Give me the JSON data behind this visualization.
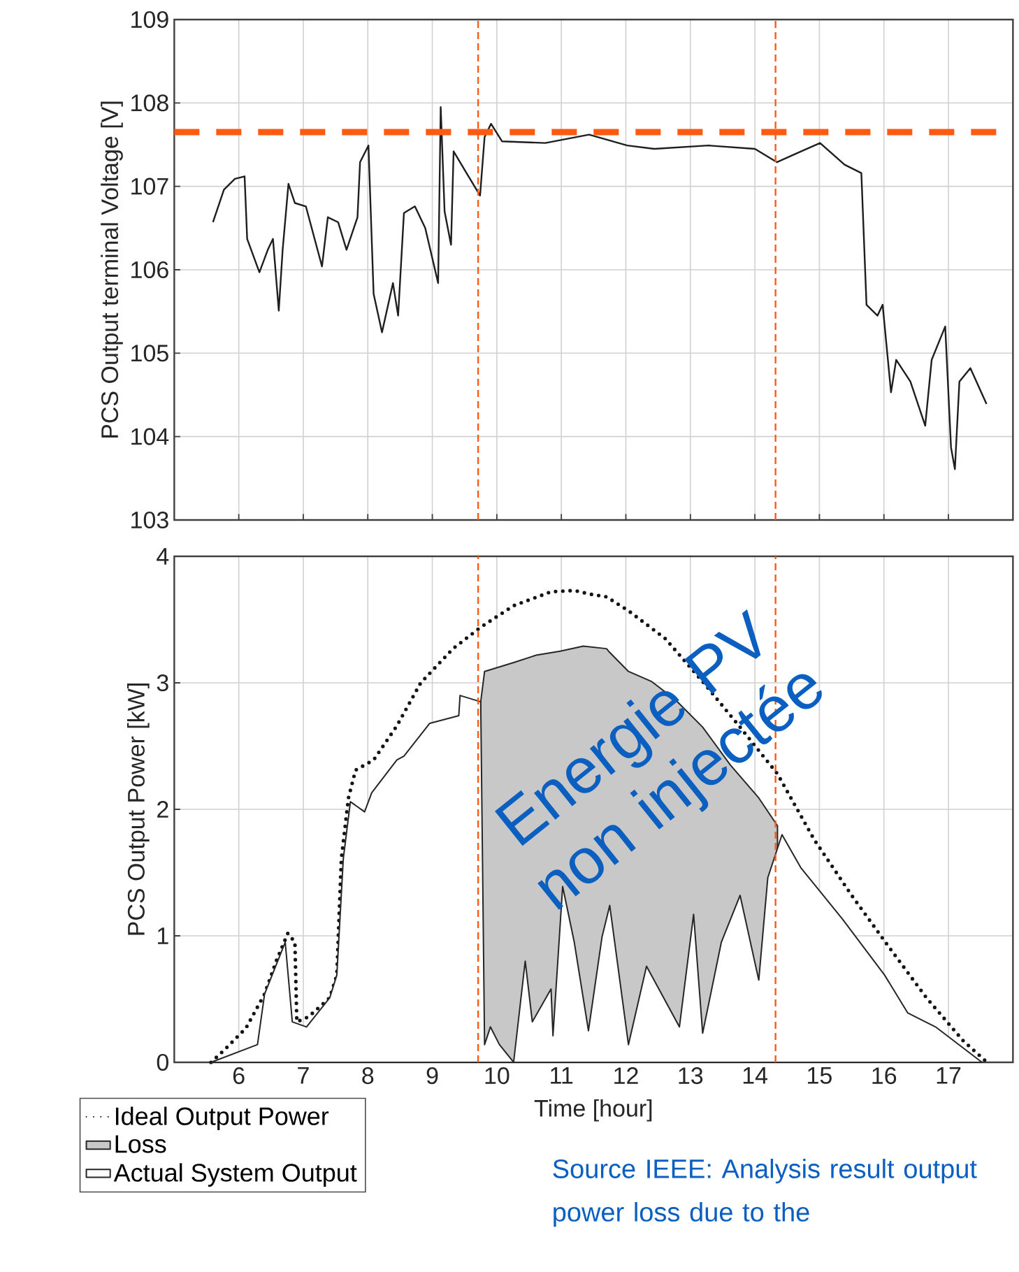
{
  "chart_data": [
    {
      "type": "line",
      "ylabel": "PCS Output terminal Voltage [V]",
      "xlim": [
        5,
        18
      ],
      "ylim": [
        103,
        109
      ],
      "xticks": [
        6,
        7,
        8,
        9,
        10,
        11,
        12,
        13,
        14,
        15,
        16,
        17
      ],
      "yticks": [
        103,
        104,
        105,
        106,
        107,
        108,
        109
      ],
      "tick_labels": "y",
      "grid": true,
      "ref_lines": [
        {
          "axis": "y",
          "value": 107.65,
          "color": "#ff5a14",
          "line_style": "dashed"
        },
        {
          "axis": "x",
          "value": 9.71,
          "color": "#ff5a14",
          "line_style": "dashed"
        },
        {
          "axis": "x",
          "value": 14.32,
          "color": "#ff5a14",
          "line_style": "dashed"
        }
      ],
      "series": [
        {
          "color": "#1e1e1e",
          "x": [
            5.6,
            5.77,
            5.94,
            6.09,
            6.13,
            6.32,
            6.45,
            6.53,
            6.62,
            6.68,
            6.77,
            6.87,
            7.04,
            7.29,
            7.38,
            7.54,
            7.67,
            7.84,
            7.88,
            8.01,
            8.09,
            8.22,
            8.39,
            8.47,
            8.56,
            8.73,
            8.89,
            9.09,
            9.13,
            9.19,
            9.29,
            9.33,
            9.53,
            9.74,
            9.81,
            9.91,
            10.08,
            10.75,
            11.43,
            12.02,
            12.44,
            13.28,
            14.0,
            14.34,
            14.63,
            15.01,
            15.39,
            15.65,
            15.73,
            15.9,
            15.98,
            16.11,
            16.19,
            16.41,
            16.64,
            16.74,
            16.95,
            17.04,
            17.1,
            17.17,
            17.34,
            17.59
          ],
          "values": [
            106.57,
            106.96,
            107.09,
            107.12,
            106.37,
            105.97,
            106.24,
            106.37,
            105.51,
            106.24,
            107.03,
            106.8,
            106.76,
            106.04,
            106.63,
            106.57,
            106.24,
            106.63,
            107.29,
            107.49,
            105.71,
            105.25,
            105.84,
            105.45,
            106.68,
            106.76,
            106.5,
            105.84,
            107.95,
            106.7,
            106.3,
            107.42,
            107.16,
            106.89,
            107.59,
            107.75,
            107.54,
            107.52,
            107.62,
            107.49,
            107.45,
            107.49,
            107.45,
            107.29,
            107.39,
            107.52,
            107.26,
            107.16,
            105.58,
            105.45,
            105.58,
            104.53,
            104.92,
            104.66,
            104.13,
            104.92,
            105.32,
            103.87,
            103.61,
            104.66,
            104.82,
            104.39
          ]
        }
      ]
    },
    {
      "type": "line",
      "xlabel": "Time [hour]",
      "ylabel": "PCS Output Power [kW]",
      "xlim": [
        5,
        18
      ],
      "ylim": [
        0,
        4
      ],
      "xticks": [
        6,
        7,
        8,
        9,
        10,
        11,
        12,
        13,
        14,
        15,
        16,
        17
      ],
      "yticks": [
        0,
        1,
        2,
        3,
        4
      ],
      "grid": true,
      "legend": "bottom left",
      "annotations": [
        "Energie PV non injectée",
        "Source IEEE: Analysis result output power loss due to the"
      ],
      "ref_lines": [
        {
          "axis": "x",
          "value": 9.71,
          "color": "#ff5a14",
          "line_style": "dashed"
        },
        {
          "axis": "x",
          "value": 14.32,
          "color": "#ff5a14",
          "line_style": "dashed"
        }
      ],
      "series": [
        {
          "name": "Ideal Output Power",
          "color": "#141414",
          "line_style": "dotted",
          "x": [
            5.57,
            5.78,
            6.11,
            6.4,
            6.58,
            6.76,
            6.87,
            6.9,
            7.08,
            7.41,
            7.52,
            7.59,
            7.7,
            7.81,
            8.09,
            8.45,
            8.82,
            9.32,
            9.75,
            10.26,
            10.84,
            11.2,
            11.46,
            11.7,
            12.04,
            12.61,
            13.19,
            13.77,
            14.35,
            14.92,
            15.5,
            16.08,
            16.66,
            17.23,
            17.6
          ],
          "values": [
            0.0,
            0.1,
            0.27,
            0.54,
            0.8,
            1.02,
            0.95,
            0.32,
            0.36,
            0.51,
            0.69,
            1.61,
            2.09,
            2.31,
            2.39,
            2.66,
            3.0,
            3.27,
            3.44,
            3.61,
            3.72,
            3.73,
            3.7,
            3.68,
            3.57,
            3.35,
            3.01,
            2.65,
            2.28,
            1.76,
            1.32,
            0.91,
            0.51,
            0.17,
            0.0
          ]
        },
        {
          "name": "Loss",
          "type": "area",
          "color": "#c8c8c8",
          "x": [
            9.75,
            9.81,
            10.26,
            10.62,
            10.98,
            11.34,
            11.7,
            11.75,
            12.04,
            12.4,
            12.76,
            13.19,
            13.62,
            14.06,
            14.35
          ],
          "values": [
            2.85,
            3.09,
            3.16,
            3.22,
            3.25,
            3.29,
            3.27,
            3.24,
            3.09,
            3.01,
            2.87,
            2.65,
            2.35,
            2.09,
            1.87
          ]
        },
        {
          "name": "Actual System Output",
          "type": "area",
          "color": "#ffffff",
          "x": [
            5.57,
            6.29,
            6.4,
            6.72,
            6.83,
            7.05,
            7.41,
            7.52,
            7.62,
            7.73,
            7.95,
            8.06,
            8.45,
            8.56,
            8.96,
            9.41,
            9.43,
            9.75,
            9.81,
            9.9,
            10.04,
            10.26,
            10.44,
            10.55,
            10.84,
            10.87,
            11.02,
            11.2,
            11.42,
            11.63,
            11.75,
            12.04,
            12.32,
            12.83,
            13.05,
            13.19,
            13.48,
            13.77,
            14.06,
            14.2,
            14.42,
            14.71,
            15.36,
            16.01,
            16.37,
            16.8,
            17.52
          ],
          "values": [
            0.0,
            0.14,
            0.54,
            0.95,
            0.32,
            0.28,
            0.51,
            0.69,
            1.61,
            2.06,
            1.98,
            2.13,
            2.39,
            2.42,
            2.68,
            2.74,
            2.9,
            2.85,
            0.14,
            0.28,
            0.14,
            0.0,
            0.8,
            0.32,
            0.58,
            0.21,
            1.39,
            0.95,
            0.25,
            0.99,
            1.24,
            0.14,
            0.76,
            0.28,
            1.17,
            0.23,
            0.95,
            1.32,
            0.65,
            1.46,
            1.8,
            1.54,
            1.13,
            0.69,
            0.39,
            0.28,
            0.0
          ]
        }
      ]
    }
  ]
}
